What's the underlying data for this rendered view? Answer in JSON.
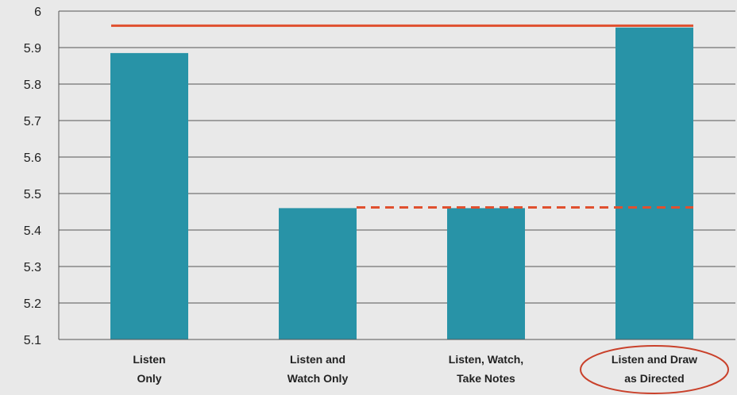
{
  "chart_data": {
    "type": "bar",
    "categories": [
      [
        "Listen",
        "Only"
      ],
      [
        "Listen and",
        "Watch Only"
      ],
      [
        "Listen, Watch,",
        "Take Notes"
      ],
      [
        "Listen and Draw",
        "as Directed"
      ]
    ],
    "values": [
      5.885,
      5.46,
      5.46,
      5.955
    ],
    "ylim": [
      5.1,
      6.0
    ],
    "yticks": [
      "5.1",
      "5.2",
      "5.3",
      "5.4",
      "5.5",
      "5.6",
      "5.7",
      "5.8",
      "5.9",
      "6"
    ],
    "grid": true,
    "xlabel": "",
    "ylabel": "",
    "title": "",
    "reference_lines": [
      {
        "value": 5.96,
        "style": "solid"
      },
      {
        "value": 5.462,
        "style": "dashed"
      }
    ],
    "highlighted_category": 3
  },
  "colors": {
    "background": "#e9e9e9",
    "bar": "#2893a7",
    "reference": "#e0502f",
    "highlight": "#c9402a",
    "grid": "#555555"
  }
}
